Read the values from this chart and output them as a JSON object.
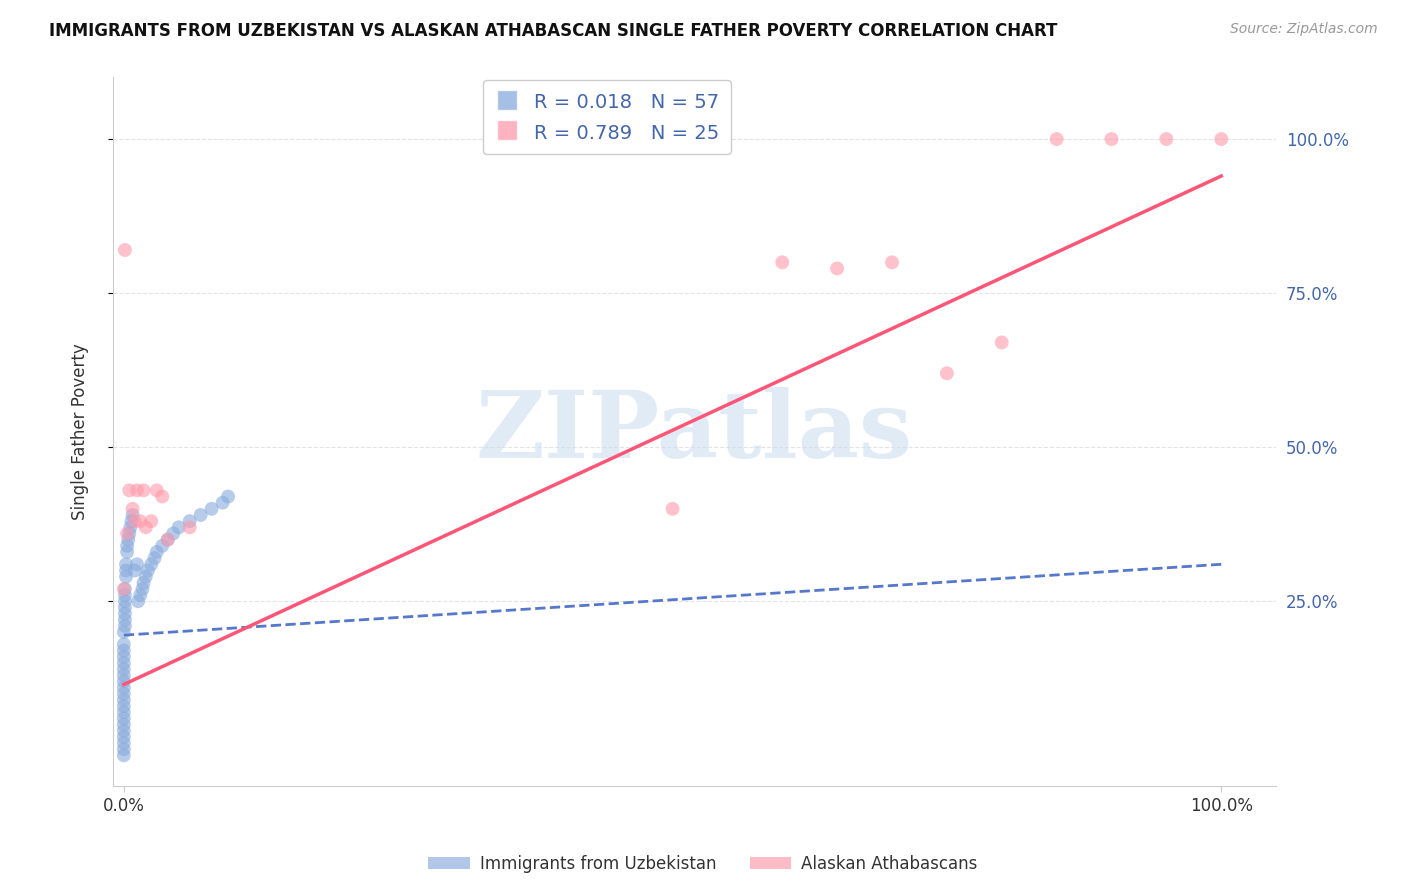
{
  "title": "IMMIGRANTS FROM UZBEKISTAN VS ALASKAN ATHABASCAN SINGLE FATHER POVERTY CORRELATION CHART",
  "source": "Source: ZipAtlas.com",
  "ylabel": "Single Father Poverty",
  "blue_R": "0.018",
  "blue_N": "57",
  "pink_R": "0.789",
  "pink_N": "25",
  "blue_color": "#88AADD",
  "pink_color": "#FF99AA",
  "blue_line_color": "#5577CC",
  "pink_line_color": "#FF5577",
  "watermark_text": "ZIPatlas",
  "watermark_color": "#C8DCEF",
  "blue_scatter_x": [
    0.0,
    0.0,
    0.0,
    0.0,
    0.0,
    0.0,
    0.0,
    0.0,
    0.0,
    0.0,
    0.0,
    0.0,
    0.0,
    0.0,
    0.0,
    0.0,
    0.0,
    0.0,
    0.0,
    0.0,
    0.001,
    0.001,
    0.001,
    0.001,
    0.001,
    0.001,
    0.001,
    0.002,
    0.002,
    0.002,
    0.003,
    0.003,
    0.004,
    0.005,
    0.006,
    0.007,
    0.008,
    0.01,
    0.012,
    0.013,
    0.015,
    0.017,
    0.018,
    0.02,
    0.022,
    0.025,
    0.028,
    0.03,
    0.035,
    0.04,
    0.045,
    0.05,
    0.06,
    0.07,
    0.08,
    0.09,
    0.095
  ],
  "blue_scatter_y": [
    0.0,
    0.01,
    0.02,
    0.03,
    0.04,
    0.05,
    0.06,
    0.07,
    0.08,
    0.09,
    0.1,
    0.11,
    0.12,
    0.13,
    0.14,
    0.15,
    0.16,
    0.17,
    0.18,
    0.2,
    0.21,
    0.22,
    0.23,
    0.24,
    0.25,
    0.26,
    0.27,
    0.29,
    0.3,
    0.31,
    0.33,
    0.34,
    0.35,
    0.36,
    0.37,
    0.38,
    0.39,
    0.3,
    0.31,
    0.25,
    0.26,
    0.27,
    0.28,
    0.29,
    0.3,
    0.31,
    0.32,
    0.33,
    0.34,
    0.35,
    0.36,
    0.37,
    0.38,
    0.39,
    0.4,
    0.41,
    0.42
  ],
  "pink_scatter_x": [
    0.0,
    0.001,
    0.003,
    0.005,
    0.008,
    0.01,
    0.012,
    0.015,
    0.018,
    0.02,
    0.025,
    0.03,
    0.035,
    0.04,
    0.06,
    0.5,
    0.6,
    0.65,
    0.7,
    0.75,
    0.8,
    0.85,
    0.9,
    0.95,
    1.0
  ],
  "pink_scatter_y": [
    0.27,
    0.82,
    0.36,
    0.43,
    0.4,
    0.38,
    0.43,
    0.38,
    0.43,
    0.37,
    0.38,
    0.43,
    0.42,
    0.35,
    0.37,
    0.4,
    0.8,
    0.79,
    0.8,
    0.62,
    0.67,
    1.0,
    1.0,
    1.0,
    1.0
  ],
  "blue_line_x": [
    0.0,
    1.0
  ],
  "blue_line_y": [
    0.195,
    0.31
  ],
  "pink_line_x": [
    0.0,
    1.0
  ],
  "pink_line_y": [
    0.115,
    0.94
  ],
  "xlim": [
    -0.01,
    1.05
  ],
  "ylim": [
    -0.05,
    1.1
  ],
  "xticks": [
    0.0,
    1.0
  ],
  "xticklabels": [
    "0.0%",
    "100.0%"
  ],
  "yticks": [
    0.25,
    0.5,
    0.75,
    1.0
  ],
  "yticklabels_right": [
    "25.0%",
    "50.0%",
    "75.0%",
    "100.0%"
  ],
  "grid_color": "#DDDDDD",
  "spine_color": "#CCCCCC",
  "tick_color": "#4466AA"
}
